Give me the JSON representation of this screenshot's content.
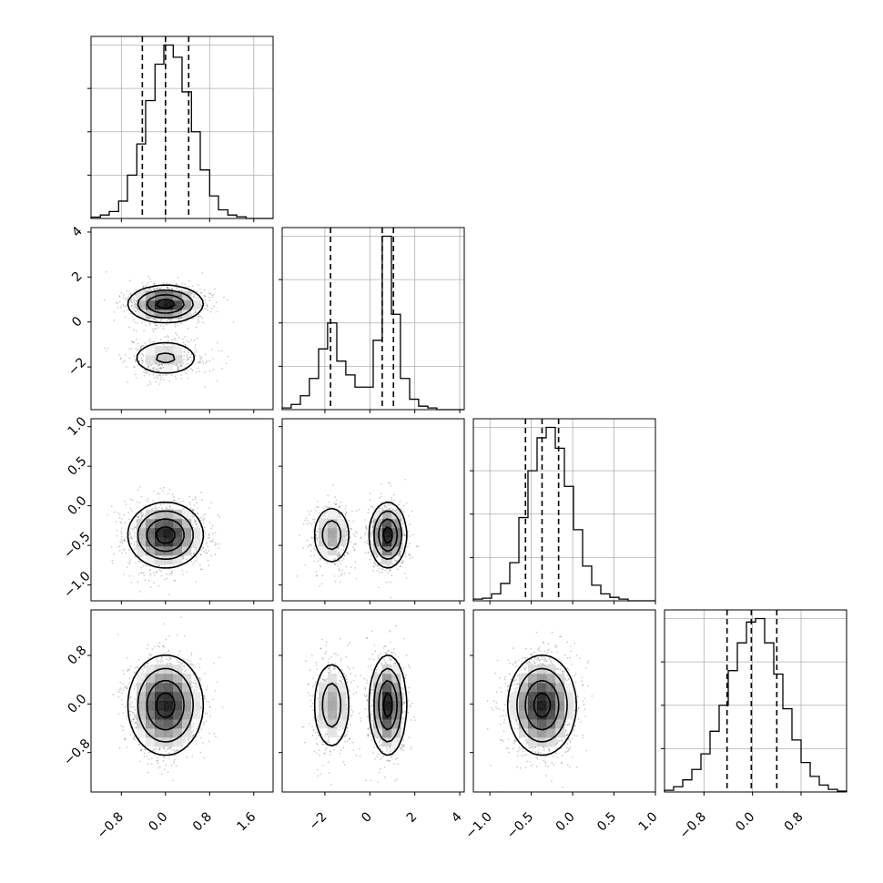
{
  "chart_data": [
    {
      "panel": "hist-p0",
      "type": "histogram",
      "grid": true,
      "xlim": [
        -1.35,
        1.95
      ],
      "x_tick_values": [
        -0.8,
        0.0,
        0.8,
        1.6
      ],
      "bin_edges": [
        -1.35,
        -1.18,
        -1.02,
        -0.85,
        -0.69,
        -0.52,
        -0.36,
        -0.19,
        -0.03,
        0.14,
        0.3,
        0.47,
        0.63,
        0.8,
        0.96,
        1.13,
        1.29,
        1.46,
        1.62,
        1.79,
        1.95
      ],
      "counts": [
        0.008,
        0.02,
        0.04,
        0.1,
        0.25,
        0.43,
        0.68,
        0.89,
        1.0,
        0.93,
        0.73,
        0.5,
        0.28,
        0.13,
        0.05,
        0.02,
        0.01,
        0,
        0,
        0
      ],
      "quantiles": [
        -0.42,
        0.0,
        0.42
      ]
    },
    {
      "panel": "hist-p1",
      "type": "histogram",
      "grid": true,
      "xlim": [
        -3.9,
        4.2
      ],
      "x_tick_values": [
        -2,
        0,
        2,
        4
      ],
      "bin_edges": [
        -3.9,
        -3.5,
        -3.09,
        -2.69,
        -2.28,
        -1.88,
        -1.47,
        -1.07,
        -0.66,
        -0.26,
        0.15,
        0.55,
        0.96,
        1.36,
        1.77,
        2.17,
        2.58,
        2.98,
        3.39,
        3.79,
        4.2
      ],
      "counts": [
        0.01,
        0.03,
        0.08,
        0.18,
        0.35,
        0.5,
        0.28,
        0.2,
        0.13,
        0.13,
        0.4,
        1.0,
        0.55,
        0.18,
        0.06,
        0.02,
        0.01,
        0,
        0,
        0
      ],
      "quantiles": [
        -1.75,
        0.55,
        1.05
      ]
    },
    {
      "panel": "hist-p2",
      "type": "histogram",
      "grid": true,
      "xlim": [
        -1.2,
        1.0
      ],
      "x_tick_values": [
        -1.0,
        -0.5,
        0.0,
        0.5,
        1.0
      ],
      "bin_edges": [
        -1.2,
        -1.09,
        -0.98,
        -0.87,
        -0.76,
        -0.65,
        -0.54,
        -0.43,
        -0.32,
        -0.21,
        -0.1,
        0.01,
        0.12,
        0.23,
        0.34,
        0.45,
        0.56,
        0.67,
        0.78,
        0.89,
        1.0
      ],
      "counts": [
        0.01,
        0.015,
        0.04,
        0.1,
        0.22,
        0.48,
        0.75,
        0.94,
        1.0,
        0.88,
        0.66,
        0.41,
        0.2,
        0.09,
        0.04,
        0.02,
        0.01,
        0,
        0,
        0
      ],
      "quantiles": [
        -0.57,
        -0.37,
        -0.17
      ]
    },
    {
      "panel": "hist-p3",
      "type": "histogram",
      "grid": true,
      "xlim": [
        -1.45,
        1.55
      ],
      "x_tick_values": [
        -0.8,
        0.0,
        0.8
      ],
      "bin_edges": [
        -1.45,
        -1.3,
        -1.15,
        -1.0,
        -0.85,
        -0.7,
        -0.55,
        -0.4,
        -0.25,
        -0.1,
        0.05,
        0.2,
        0.35,
        0.5,
        0.65,
        0.8,
        0.95,
        1.1,
        1.25,
        1.4,
        1.55
      ],
      "counts": [
        0.01,
        0.03,
        0.07,
        0.13,
        0.22,
        0.35,
        0.5,
        0.7,
        0.86,
        0.98,
        1.0,
        0.86,
        0.68,
        0.48,
        0.3,
        0.17,
        0.09,
        0.04,
        0.015,
        0.005
      ],
      "quantiles": [
        -0.42,
        -0.02,
        0.4
      ]
    },
    {
      "panel": "contour-p0-p1",
      "type": "scatter-contour",
      "grid": false,
      "xlim": [
        -1.35,
        1.95
      ],
      "ylim": [
        -3.9,
        4.2
      ],
      "x_tick_values": [
        -0.8,
        0.0,
        0.8,
        1.6
      ],
      "y_tick_values": [
        -2,
        0,
        2,
        4
      ],
      "density": [
        {
          "cx": 0.0,
          "cy": 0.8,
          "sx": 0.33,
          "sy": 0.4,
          "w": 0.7
        },
        {
          "cx": 0.0,
          "cy": -1.6,
          "sx": 0.35,
          "sy": 0.45,
          "w": 0.3
        }
      ]
    },
    {
      "panel": "contour-p0-p2",
      "type": "scatter-contour",
      "grid": false,
      "xlim": [
        -1.35,
        1.95
      ],
      "ylim": [
        -1.2,
        1.1
      ],
      "x_tick_values": [
        -0.8,
        0.0,
        0.8,
        1.6
      ],
      "y_tick_values": [
        -1.0,
        -0.5,
        0.0,
        0.5,
        1.0
      ],
      "density": [
        {
          "cx": 0.0,
          "cy": -0.37,
          "sx": 0.33,
          "sy": 0.2,
          "w": 1.0
        }
      ]
    },
    {
      "panel": "contour-p1-p2",
      "type": "scatter-contour",
      "grid": false,
      "xlim": [
        -3.9,
        4.2
      ],
      "ylim": [
        -1.2,
        1.1
      ],
      "x_tick_values": [
        -2,
        0,
        2,
        4
      ],
      "y_tick_values": [
        -1.0,
        -0.5,
        0.0,
        0.5,
        1.0
      ],
      "density": [
        {
          "cx": -1.7,
          "cy": -0.37,
          "sx": 0.45,
          "sy": 0.2,
          "w": 0.35
        },
        {
          "cx": 0.8,
          "cy": -0.37,
          "sx": 0.4,
          "sy": 0.2,
          "w": 0.65
        }
      ]
    },
    {
      "panel": "contour-p0-p3",
      "type": "scatter-contour",
      "grid": false,
      "xlim": [
        -1.35,
        1.95
      ],
      "ylim": [
        -1.45,
        1.55
      ],
      "x_tick_values": [
        -0.8,
        0.0,
        0.8,
        1.6
      ],
      "y_tick_values": [
        -0.8,
        0.0,
        0.8
      ],
      "density": [
        {
          "cx": 0.0,
          "cy": -0.02,
          "sx": 0.33,
          "sy": 0.4,
          "w": 1.0
        }
      ]
    },
    {
      "panel": "contour-p1-p3",
      "type": "scatter-contour",
      "grid": false,
      "xlim": [
        -3.9,
        4.2
      ],
      "ylim": [
        -1.45,
        1.55
      ],
      "x_tick_values": [
        -2,
        0,
        2,
        4
      ],
      "y_tick_values": [
        -0.8,
        0.0,
        0.8
      ],
      "density": [
        {
          "cx": -1.7,
          "cy": -0.02,
          "sx": 0.45,
          "sy": 0.4,
          "w": 0.35
        },
        {
          "cx": 0.8,
          "cy": -0.02,
          "sx": 0.4,
          "sy": 0.4,
          "w": 0.65
        }
      ]
    },
    {
      "panel": "contour-p2-p3",
      "type": "scatter-contour",
      "grid": false,
      "xlim": [
        -1.2,
        1.0
      ],
      "ylim": [
        -1.45,
        1.55
      ],
      "x_tick_values": [
        -1.0,
        -0.5,
        0.0,
        0.5,
        1.0
      ],
      "y_tick_values": [
        -0.8,
        0.0,
        0.8
      ],
      "density": [
        {
          "cx": -0.37,
          "cy": -0.02,
          "sx": 0.2,
          "sy": 0.4,
          "w": 1.0
        }
      ]
    }
  ],
  "tick_labels": {
    "col0_x": [
      "−0.8",
      "0.0",
      "0.8",
      "1.6"
    ],
    "col1_x": [
      "−2",
      "0",
      "2",
      "4"
    ],
    "col2_x": [
      "−1.0",
      "−0.5",
      "0.0",
      "0.5",
      "1.0"
    ],
    "col3_x": [
      "−0.8",
      "0.0",
      "0.8"
    ],
    "row1_y": [
      "−2",
      "0",
      "2",
      "4"
    ],
    "row2_y": [
      "−1.0",
      "−0.5",
      "0.0",
      "0.5",
      "1.0"
    ],
    "row3_y": [
      "−0.8",
      "0.0",
      "0.8"
    ]
  },
  "colors": {
    "ink": "#000000",
    "grid": "#b0b0b0",
    "points": "#555555"
  }
}
